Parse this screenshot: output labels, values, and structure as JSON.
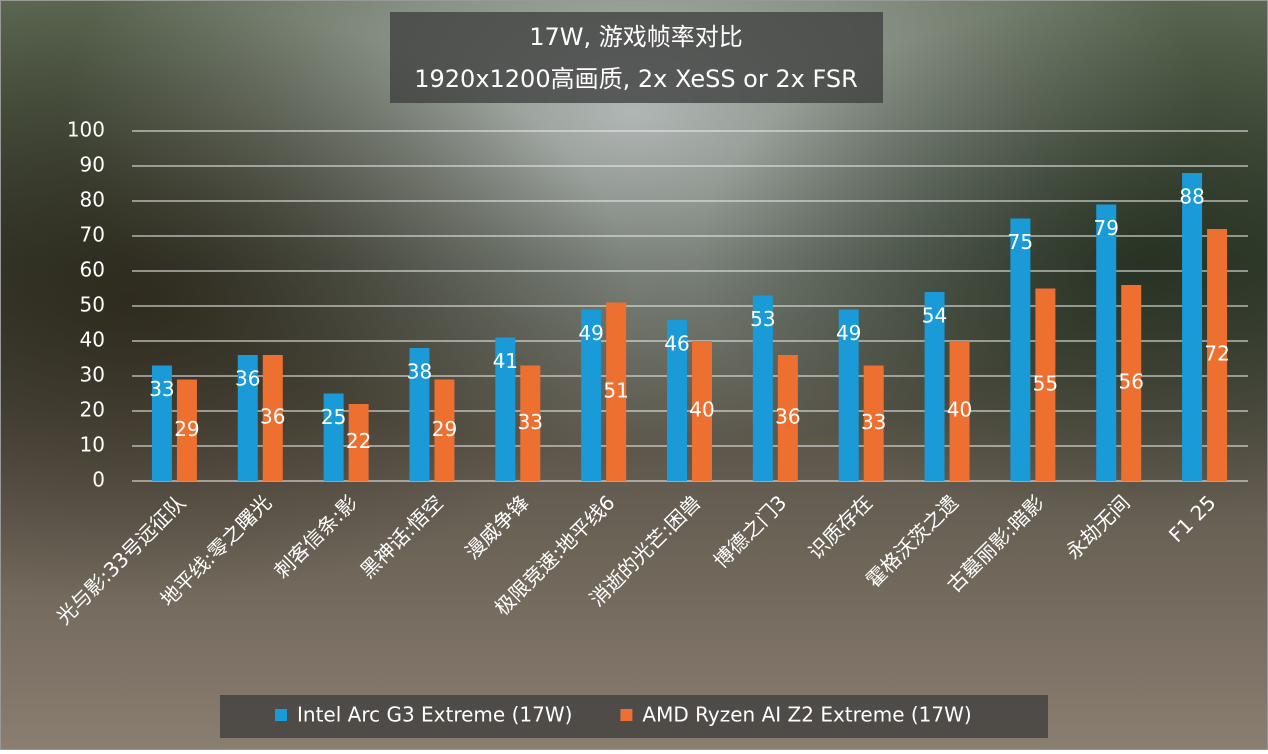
{
  "chart_data": {
    "type": "bar",
    "title": "17W, 游戏帧率对比",
    "subtitle": "1920x1200高画质, 2x XeSS or 2x FSR",
    "categories": [
      "光与影:33号远征队",
      "地平线:零之曙光",
      "刺客信条:影",
      "黑神话:悟空",
      "漫威争锋",
      "极限竞速:地平线6",
      "消逝的光芒:困兽",
      "博德之门3",
      "识质存在",
      "霍格沃茨之遗",
      "古墓丽影:暗影",
      "永劫无间",
      "F1 25"
    ],
    "series": [
      {
        "name": "Intel Arc G3 Extreme (17W)",
        "color": "#1a9ad6",
        "values": [
          33,
          36,
          25,
          38,
          41,
          49,
          46,
          53,
          49,
          54,
          75,
          79,
          88
        ]
      },
      {
        "name": "AMD Ryzen AI Z2 Extreme (17W)",
        "color": "#ee7030",
        "values": [
          29,
          36,
          22,
          29,
          33,
          51,
          40,
          36,
          33,
          40,
          55,
          56,
          72
        ]
      }
    ],
    "ylim": [
      0,
      100
    ],
    "yticks": [
      0,
      10,
      20,
      30,
      40,
      50,
      60,
      70,
      80,
      90,
      100
    ],
    "grid": true,
    "legend": "bottom"
  }
}
